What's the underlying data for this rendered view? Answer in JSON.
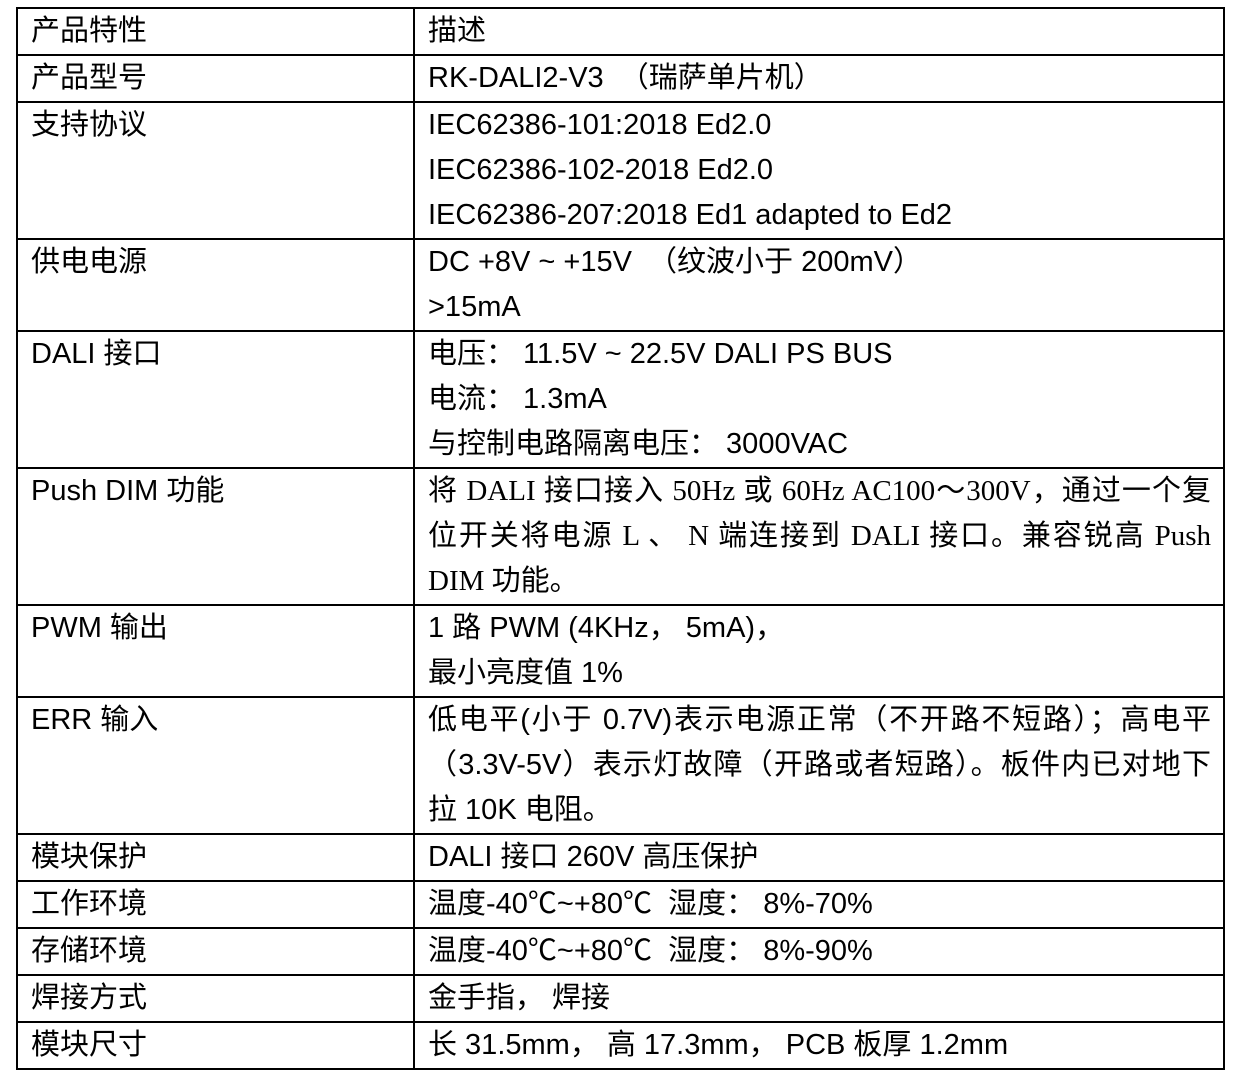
{
  "table": {
    "header": {
      "col1": "产品特性",
      "col2": "描述"
    },
    "rows": [
      {
        "label": "产品型号",
        "lines": [
          "RK-DALI2-V3  （瑞萨单片机）"
        ]
      },
      {
        "label": "支持协议",
        "lines": [
          "IEC62386-101:2018 Ed2.0",
          "IEC62386-102-2018 Ed2.0",
          "IEC62386-207:2018 Ed1 adapted to Ed2"
        ]
      },
      {
        "label": "供电电源",
        "lines": [
          "DC +8V ~ +15V  （纹波小于 200mV）",
          ">15mA"
        ]
      },
      {
        "label": "DALI 接口",
        "lines": [
          "电压： 11.5V ~ 22.5V DALI PS BUS",
          "电流： 1.3mA",
          "与控制电路隔离电压： 3000VAC"
        ]
      },
      {
        "label": "Push DIM 功能",
        "lines": [
          "将 DALI 接口接入 50Hz 或 60Hz AC100～300V，通过一个复位开关将电源 L 、 N 端连接到 DALI 接口。兼容锐高 Push DIM 功能。"
        ]
      },
      {
        "label": "PWM 输出",
        "lines": [
          "1 路 PWM (4KHz， 5mA)，",
          "最小亮度值 1%"
        ]
      },
      {
        "label": "ERR 输入",
        "lines": [
          "低电平(小于 0.7V)表示电源正常（不开路不短路）；高电平（3.3V-5V）表示灯故障（开路或者短路）。板件内已对地下拉 10K 电阻。"
        ]
      },
      {
        "label": "模块保护",
        "lines": [
          "DALI 接口 260V 高压保护"
        ]
      },
      {
        "label": "工作环境",
        "lines": [
          "温度-40℃~+80℃  湿度： 8%-70%"
        ]
      },
      {
        "label": "存储环境",
        "lines": [
          "温度-40℃~+80℃  湿度： 8%-90%"
        ]
      },
      {
        "label": "焊接方式",
        "lines": [
          "金手指， 焊接"
        ]
      },
      {
        "label": "模块尺寸",
        "lines": [
          "长 31.5mm， 高 17.3mm， PCB 板厚 1.2mm"
        ]
      }
    ]
  }
}
